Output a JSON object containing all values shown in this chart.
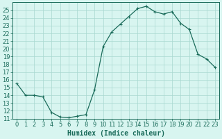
{
  "x": [
    0,
    1,
    2,
    3,
    4,
    5,
    6,
    7,
    8,
    9,
    10,
    11,
    12,
    13,
    14,
    15,
    16,
    17,
    18,
    19,
    20,
    21,
    22,
    23
  ],
  "y": [
    15.5,
    14.0,
    14.0,
    13.8,
    11.8,
    11.2,
    11.1,
    11.3,
    11.5,
    14.7,
    20.3,
    22.2,
    23.2,
    24.2,
    25.2,
    25.5,
    24.8,
    24.5,
    24.8,
    23.3,
    22.5,
    19.3,
    18.7,
    17.6
  ],
  "line_color": "#1a6b5a",
  "marker": "+",
  "marker_size": 3,
  "marker_linewidth": 0.8,
  "bg_color": "#d8f5f0",
  "grid_color": "#a8d8d0",
  "xlabel": "Humidex (Indice chaleur)",
  "xlim": [
    -0.5,
    23.5
  ],
  "ylim": [
    11,
    26
  ],
  "yticks": [
    11,
    12,
    13,
    14,
    15,
    16,
    17,
    18,
    19,
    20,
    21,
    22,
    23,
    24,
    25
  ],
  "xticks": [
    0,
    1,
    2,
    3,
    4,
    5,
    6,
    7,
    8,
    9,
    10,
    11,
    12,
    13,
    14,
    15,
    16,
    17,
    18,
    19,
    20,
    21,
    22,
    23
  ],
  "tick_color": "#1a6b5a",
  "axis_color": "#1a6b5a",
  "tick_fontsize": 6,
  "xlabel_fontsize": 7,
  "linewidth": 0.9
}
